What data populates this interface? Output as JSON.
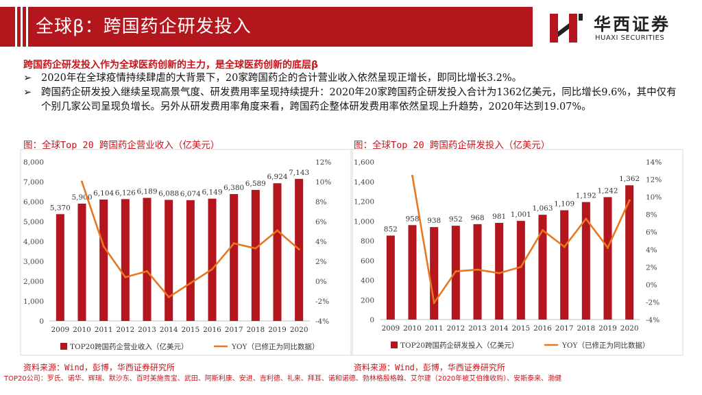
{
  "header": {
    "title": "全球β：跨国药企研发投入",
    "logo_cn": "华西证券",
    "logo_en": "HUAXI SECURITIES"
  },
  "subheading": "跨国药企研发投入作为全球医药创新的主力，是全球医药创新的底层β",
  "bullets": [
    {
      "mark": "➢",
      "text": "2020年在全球疫情持续肆虐的大背景下，20家跨国药企的合计营业收入依然呈现正增长，即同比增长3.2%。"
    },
    {
      "mark": "➢",
      "text": "跨国药企研发投入继续呈现高景气度、研发费用率呈现持续提升：2020年20家跨国药企研发投入合计为1362亿美元，同比增长9.6%，其中仅有个别几家公司呈现负增长。另外从研发费用率角度来看，跨国药企整体研发费用率依然呈现上升趋势，2020年达到19.07%。"
    }
  ],
  "colors": {
    "accent": "#b3161c",
    "bar": "#b3161c",
    "line": "#e87722"
  },
  "chart_data": [
    {
      "type": "bar",
      "title": "图：全球Top 20 跨国药企营业收入（亿美元）",
      "source": "资料来源：Wind，彭博，华西证券研究所",
      "categories": [
        "2009",
        "2010",
        "2011",
        "2012",
        "2013",
        "2014",
        "2015",
        "2016",
        "2017",
        "2018",
        "2019",
        "2020"
      ],
      "series": [
        {
          "name": "TOP20跨国药企营业收入（亿美元）",
          "axis": "left",
          "values": [
            5370,
            5900,
            6104,
            6126,
            6189,
            6088,
            6074,
            6149,
            6380,
            6589,
            6924,
            7143
          ],
          "labels": [
            "5,370",
            "5,900",
            "6,104",
            "6,126",
            "6,189",
            "6,088",
            "6,074",
            "6,149",
            "6,380",
            "6,589",
            "6,924",
            "7,143"
          ]
        },
        {
          "name": "YOY（已修正为同比数据）",
          "axis": "right",
          "type": "line",
          "values": [
            null,
            10.0,
            3.5,
            0.4,
            1.0,
            -1.6,
            -0.2,
            1.2,
            3.8,
            3.3,
            5.1,
            3.2
          ]
        }
      ],
      "ylim_left": [
        0,
        8000
      ],
      "yticks_left": [
        "0",
        "1,000",
        "2,000",
        "3,000",
        "4,000",
        "5,000",
        "6,000",
        "7,000",
        "8,000"
      ],
      "ylim_right": [
        -4,
        12
      ],
      "yticks_right": [
        "-4%",
        "-2%",
        "0%",
        "2%",
        "4%",
        "6%",
        "8%",
        "10%",
        "12%"
      ]
    },
    {
      "type": "bar",
      "title": "图：全球Top 20 跨国药企研发投入（亿美元）",
      "source": "资料来源：Wind，彭博，华西证券研究所",
      "categories": [
        "2009",
        "2010",
        "2011",
        "2012",
        "2013",
        "2014",
        "2015",
        "2016",
        "2017",
        "2018",
        "2019",
        "2020"
      ],
      "series": [
        {
          "name": "TOP20跨国药企研发投入（亿美元）",
          "axis": "left",
          "values": [
            852,
            958,
            938,
            952,
            968,
            981,
            1001,
            1063,
            1109,
            1192,
            1242,
            1362
          ],
          "labels": [
            "852",
            "958",
            "938",
            "952",
            "968",
            "981",
            "1,001",
            "1,063",
            "1,109",
            "1,192",
            "1,242",
            "1,362"
          ]
        },
        {
          "name": "YOY（已修正为同比数据）",
          "axis": "right",
          "type": "line",
          "values": [
            null,
            12.4,
            -2.1,
            1.5,
            1.7,
            1.3,
            2.0,
            6.2,
            4.3,
            7.5,
            4.2,
            9.6
          ]
        }
      ],
      "ylim_left": [
        0,
        1600
      ],
      "yticks_left": [
        "0",
        "200",
        "400",
        "600",
        "800",
        "1,000",
        "1,200",
        "1,400",
        "1,600"
      ],
      "ylim_right": [
        -4,
        14
      ],
      "yticks_right": [
        "-4%",
        "-2%",
        "0%",
        "2%",
        "4%",
        "6%",
        "8%",
        "10%",
        "12%",
        "14%"
      ]
    }
  ],
  "footnote": "TOP20公司：罗氏、诺华、辉瑞、默沙东、百时美施贵宝、武田、阿斯利康、安进、吉利德、礼来、拜耳、诺和诺德、勃林格殷格翰、艾尔建（2020年被艾伯维收购）、安斯泰来、渤健"
}
